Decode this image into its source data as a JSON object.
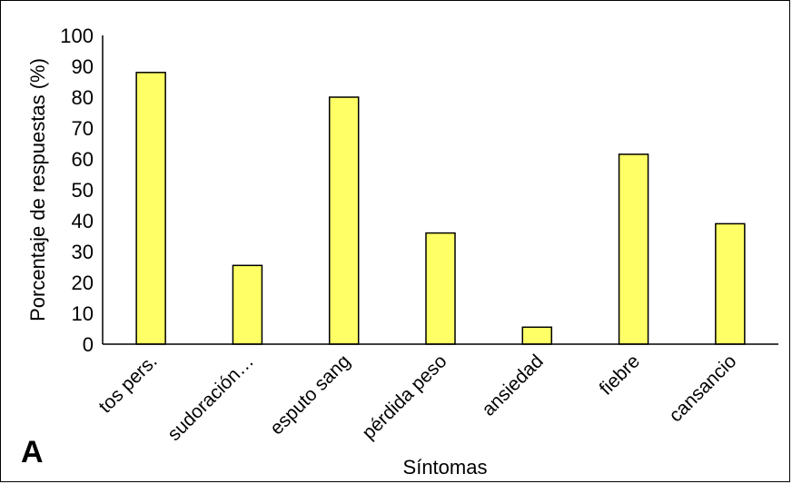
{
  "panel_label": "A",
  "chart_data": {
    "type": "bar",
    "title": "",
    "xlabel": "Síntomas",
    "ylabel": "Porcentaje de respuestas (%)",
    "ylim": [
      0,
      100
    ],
    "yticks": [
      0,
      10,
      20,
      30,
      40,
      50,
      60,
      70,
      80,
      90,
      100
    ],
    "categories": [
      "tos pers.",
      "sudoración…",
      "esputo sang",
      "pérdida peso",
      "ansiedad",
      "fiebre",
      "cansancio"
    ],
    "values": [
      88,
      25.5,
      80,
      36,
      5.5,
      61.5,
      39
    ],
    "grid": false,
    "legend": "none",
    "colors": {
      "bar_fill": "#ffff66",
      "bar_stroke": "#000000",
      "axis": "#000000"
    }
  }
}
